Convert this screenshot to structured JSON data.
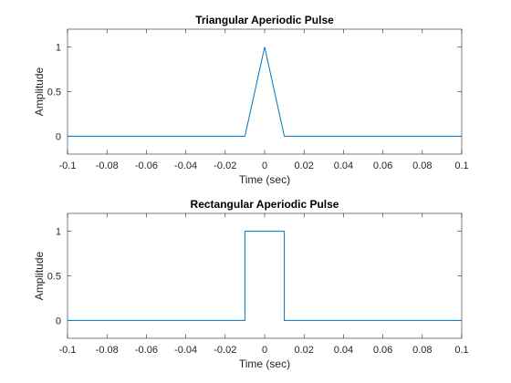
{
  "chart_data": [
    {
      "type": "line",
      "title": "Triangular Aperiodic Pulse",
      "xlabel": "Time (sec)",
      "ylabel": "Amplitude",
      "xlim": [
        -0.1,
        0.1
      ],
      "ylim": [
        -0.2,
        1.2
      ],
      "xticks": [
        -0.1,
        -0.08,
        -0.06,
        -0.04,
        -0.02,
        0,
        0.02,
        0.04,
        0.06,
        0.08,
        0.1
      ],
      "xtick_labels": [
        "-0.1",
        "-0.08",
        "-0.06",
        "-0.04",
        "-0.02",
        "0",
        "0.02",
        "0.04",
        "0.06",
        "0.08",
        "0.1"
      ],
      "yticks": [
        0,
        0.5,
        1
      ],
      "ytick_labels": [
        "0",
        "0.5",
        "1"
      ],
      "grid": false,
      "color": "#0072bd",
      "series": [
        {
          "x": [
            -0.1,
            -0.01,
            0,
            0.01,
            0.1
          ],
          "y": [
            0,
            0,
            1,
            0,
            0
          ]
        }
      ]
    },
    {
      "type": "line",
      "title": "Rectangular Aperiodic Pulse",
      "xlabel": "Time (sec)",
      "ylabel": "Amplitude",
      "xlim": [
        -0.1,
        0.1
      ],
      "ylim": [
        -0.2,
        1.2
      ],
      "xticks": [
        -0.1,
        -0.08,
        -0.06,
        -0.04,
        -0.02,
        0,
        0.02,
        0.04,
        0.06,
        0.08,
        0.1
      ],
      "xtick_labels": [
        "-0.1",
        "-0.08",
        "-0.06",
        "-0.04",
        "-0.02",
        "0",
        "0.02",
        "0.04",
        "0.06",
        "0.08",
        "0.1"
      ],
      "yticks": [
        0,
        0.5,
        1
      ],
      "ytick_labels": [
        "0",
        "0.5",
        "1"
      ],
      "grid": false,
      "color": "#0072bd",
      "series": [
        {
          "x": [
            -0.1,
            -0.01,
            -0.01,
            0.01,
            0.01,
            0.1
          ],
          "y": [
            0,
            0,
            1,
            1,
            0,
            0
          ]
        }
      ]
    }
  ]
}
